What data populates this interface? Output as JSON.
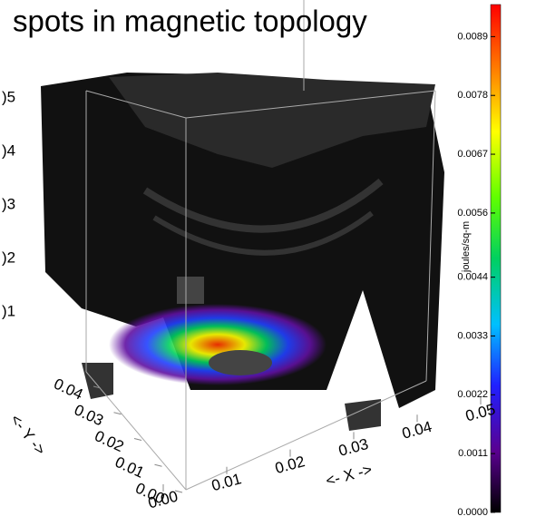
{
  "chart_data": {
    "type": "volume",
    "title": "spots in magnetic topology",
    "x_label": "<- X ->",
    "y_label": "<- Y ->",
    "xlim": [
      0,
      0.05
    ],
    "xticks": [
      {
        "value": 0,
        "label": "0.00"
      },
      0.01,
      0.02,
      0.03,
      0.04,
      0.05
    ],
    "ylim": [
      0,
      0.04
    ],
    "yticks": [
      {
        "value": 0,
        "label": "0.00"
      },
      0.01,
      0.02,
      0.03,
      0.04
    ],
    "z_tick_labels": [
      ")5",
      ")4",
      ")3",
      ")2",
      ")1"
    ],
    "colorbar": {
      "label": "joules/sq-m",
      "lim": [
        0,
        0.0095
      ],
      "ticks": [
        {
          "value": 0,
          "label": "0.0000"
        },
        0.0011,
        0.0022,
        0.0033,
        0.0044,
        0.0056,
        0.0067,
        0.0078,
        0.0089
      ]
    }
  }
}
